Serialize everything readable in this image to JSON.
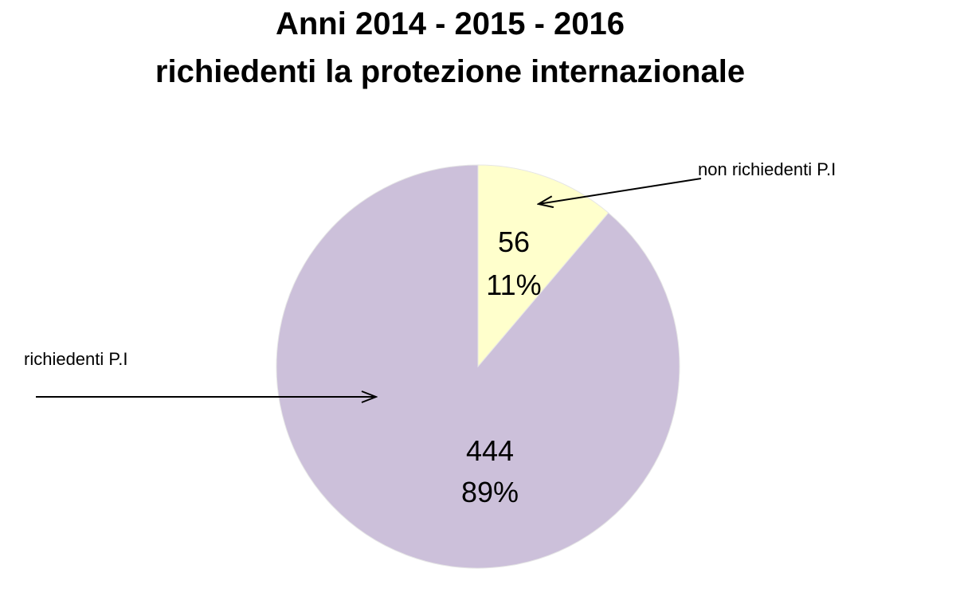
{
  "chart_data": {
    "type": "pie",
    "title": "Anni 2014 - 2015 - 2016",
    "subtitle": "richiedenti la protezione internazionale",
    "slices": [
      {
        "label": "non richiedenti P.I",
        "value": 56,
        "percent": "11%",
        "color": "#ffffcc"
      },
      {
        "label": "richiedenti P.I",
        "value": 444,
        "percent": "89%",
        "color": "#ccc0da"
      }
    ]
  }
}
